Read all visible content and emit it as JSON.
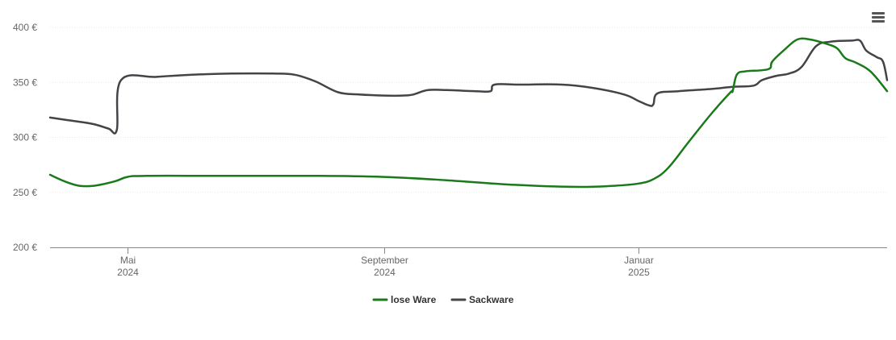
{
  "chart_data": {
    "type": "line",
    "title": "",
    "xlabel": "",
    "ylabel": "",
    "ylim": [
      200,
      400
    ],
    "y_ticks": [
      {
        "value": 200,
        "label": "200 €"
      },
      {
        "value": 250,
        "label": "250 €"
      },
      {
        "value": 300,
        "label": "300 €"
      },
      {
        "value": 350,
        "label": "350 €"
      },
      {
        "value": 400,
        "label": "400 €"
      }
    ],
    "xlim": [
      "2024-03-25",
      "2025-04-30"
    ],
    "x_ticks": [
      {
        "date": "2024-05-01",
        "line1": "Mai",
        "line2": "2024"
      },
      {
        "date": "2024-09-01",
        "line1": "September",
        "line2": "2024"
      },
      {
        "date": "2025-01-01",
        "line1": "Januar",
        "line2": "2025"
      }
    ],
    "grid": true,
    "legend": "bottom-center",
    "series": [
      {
        "name": "lose Ware",
        "color": "#1a7a1a",
        "points": [
          [
            "2024-03-25",
            266
          ],
          [
            "2024-04-01",
            260
          ],
          [
            "2024-04-08",
            256
          ],
          [
            "2024-04-15",
            256
          ],
          [
            "2024-04-25",
            260
          ],
          [
            "2024-05-01",
            264
          ],
          [
            "2024-05-10",
            265
          ],
          [
            "2024-06-15",
            265
          ],
          [
            "2024-08-01",
            265
          ],
          [
            "2024-09-01",
            264
          ],
          [
            "2024-10-01",
            261
          ],
          [
            "2024-11-01",
            257
          ],
          [
            "2024-12-01",
            255
          ],
          [
            "2024-12-20",
            256
          ],
          [
            "2025-01-01",
            258
          ],
          [
            "2025-01-08",
            262
          ],
          [
            "2025-01-15",
            272
          ],
          [
            "2025-01-25",
            296
          ],
          [
            "2025-02-05",
            322
          ],
          [
            "2025-02-14",
            341
          ],
          [
            "2025-02-15",
            342
          ],
          [
            "2025-02-17",
            357
          ],
          [
            "2025-02-21",
            360
          ],
          [
            "2025-03-01",
            361
          ],
          [
            "2025-03-05",
            363
          ],
          [
            "2025-03-06",
            369
          ],
          [
            "2025-03-12",
            380
          ],
          [
            "2025-03-18",
            389
          ],
          [
            "2025-03-24",
            389
          ],
          [
            "2025-04-01",
            385
          ],
          [
            "2025-04-06",
            381
          ],
          [
            "2025-04-10",
            372
          ],
          [
            "2025-04-15",
            368
          ],
          [
            "2025-04-22",
            360
          ],
          [
            "2025-04-30",
            342
          ]
        ]
      },
      {
        "name": "Sackware",
        "color": "#434348",
        "points": [
          [
            "2024-03-25",
            318
          ],
          [
            "2024-04-05",
            315
          ],
          [
            "2024-04-15",
            312
          ],
          [
            "2024-04-22",
            308
          ],
          [
            "2024-04-26",
            307
          ],
          [
            "2024-04-28",
            352
          ],
          [
            "2024-05-15",
            355
          ],
          [
            "2024-06-01",
            357
          ],
          [
            "2024-06-20",
            358
          ],
          [
            "2024-07-10",
            358
          ],
          [
            "2024-07-20",
            357
          ],
          [
            "2024-07-30",
            351
          ],
          [
            "2024-08-10",
            341
          ],
          [
            "2024-08-20",
            339
          ],
          [
            "2024-09-01",
            338
          ],
          [
            "2024-09-10",
            338
          ],
          [
            "2024-09-15",
            339
          ],
          [
            "2024-09-22",
            343
          ],
          [
            "2024-10-01",
            343
          ],
          [
            "2024-10-15",
            342
          ],
          [
            "2024-10-22",
            342
          ],
          [
            "2024-10-24",
            348
          ],
          [
            "2024-11-05",
            348
          ],
          [
            "2024-11-25",
            348
          ],
          [
            "2024-12-10",
            345
          ],
          [
            "2024-12-25",
            339
          ],
          [
            "2025-01-01",
            333
          ],
          [
            "2025-01-06",
            329
          ],
          [
            "2025-01-08",
            330
          ],
          [
            "2025-01-10",
            340
          ],
          [
            "2025-01-20",
            342
          ],
          [
            "2025-02-05",
            344
          ],
          [
            "2025-02-15",
            346
          ],
          [
            "2025-02-25",
            347
          ],
          [
            "2025-03-01",
            352
          ],
          [
            "2025-03-08",
            356
          ],
          [
            "2025-03-14",
            358
          ],
          [
            "2025-03-20",
            364
          ],
          [
            "2025-03-27",
            383
          ],
          [
            "2025-04-03",
            387
          ],
          [
            "2025-04-13",
            388
          ],
          [
            "2025-04-17",
            388
          ],
          [
            "2025-04-20",
            379
          ],
          [
            "2025-04-25",
            373
          ],
          [
            "2025-04-28",
            369
          ],
          [
            "2025-04-30",
            352
          ]
        ]
      }
    ]
  },
  "menu": {
    "icon": "hamburger-menu-icon"
  }
}
